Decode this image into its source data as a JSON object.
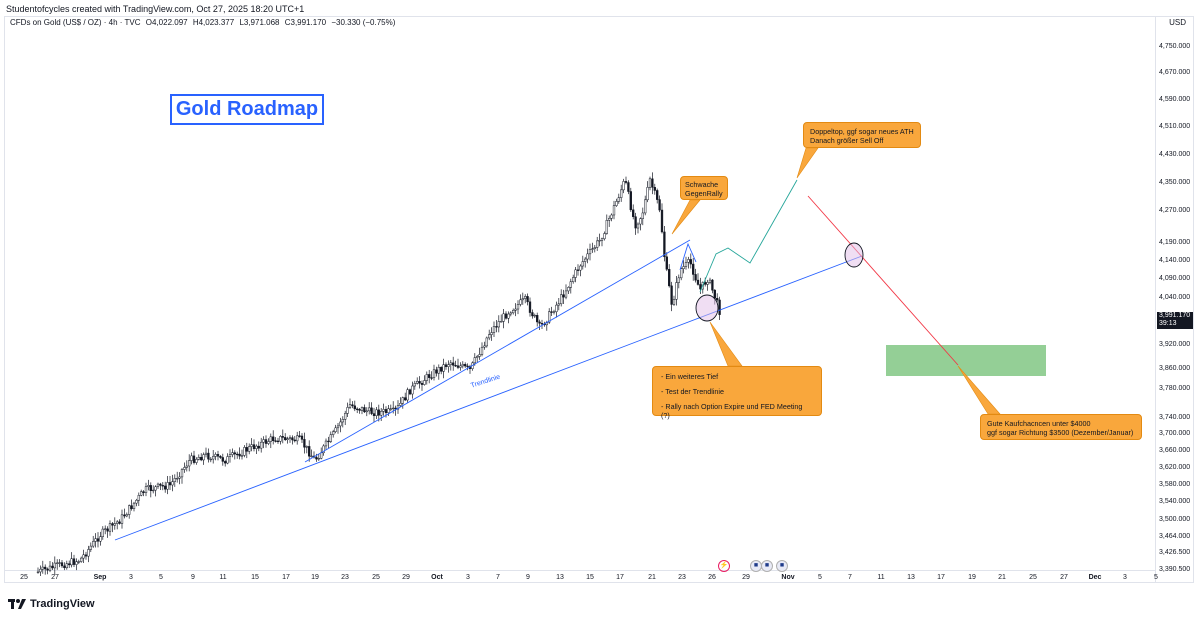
{
  "credit": "Studentofcycles created with TradingView.com, Oct 27, 2025 18:20 UTC+1",
  "symbol": {
    "name": "CFDs on Gold (US$ / OZ) · 4h · TVC",
    "open": "O4,022.097",
    "high": "H4,023.377",
    "low": "L3,971.068",
    "close": "C3,991.170",
    "change": "−30.330 (−0.75%)"
  },
  "currency": "USD",
  "price_axis": {
    "ticks": [
      "4,750.000",
      "4,670.000",
      "4,590.000",
      "4,510.000",
      "4,430.000",
      "4,350.000",
      "4,270.000",
      "4,190.000",
      "4,140.000",
      "4,090.000",
      "4,040.000",
      "3,920.000",
      "3,860.000",
      "3,780.000",
      "3,740.000",
      "3,700.000",
      "3,660.000",
      "3,620.000",
      "3,580.000",
      "3,540.000",
      "3,500.000",
      "3,464.000",
      "3,426.500",
      "3,390.500"
    ],
    "current_price": "3,991.170",
    "countdown": "39:13"
  },
  "time_axis": {
    "ticks": [
      "25",
      "27",
      "Sep",
      "3",
      "5",
      "9",
      "11",
      "15",
      "17",
      "19",
      "23",
      "25",
      "29",
      "Oct",
      "3",
      "7",
      "9",
      "13",
      "15",
      "17",
      "21",
      "23",
      "26",
      "29",
      "Nov",
      "5",
      "7",
      "11",
      "13",
      "17",
      "19",
      "21",
      "25",
      "27",
      "Dec",
      "3",
      "5"
    ]
  },
  "title": "Gold Roadmap",
  "trendline_label": "Trendlinie",
  "callouts": {
    "weak_rally": [
      "Schwache",
      "GegenRally"
    ],
    "double_top": [
      "Doppeltop, ggf sogar neues ATH",
      "Danach größer Sell Off"
    ],
    "new_low": [
      "- Ein weiteres Tief",
      "- Test der Trendlinie",
      "- Rally nach Option Expire und FED Meeting (?)"
    ],
    "buy_zone": [
      "Gute Kaufchacncen unter $4000",
      "ggf sogar Richtung $3500 (Dezember/Januar)"
    ]
  },
  "event_icons": [
    "bolt-icon",
    "us-flag-icon",
    "us-flag-icon",
    "us-flag-icon"
  ],
  "footer": "TradingView",
  "colors": {
    "candle": "#131722",
    "trendline": "#2962ff",
    "projection_up": "#26a69a",
    "projection_down": "#f23645",
    "buy_zone": "#81c784",
    "callout": "#f9a73c",
    "title": "#2962ff"
  },
  "chart_data": {
    "type": "line",
    "title": "",
    "series": [
      {
        "name": "",
        "x": [
          "Aug 25",
          "Aug 27",
          "Sep 1",
          "Sep 3",
          "Sep 5",
          "Sep 9",
          "Sep 11",
          "Sep 15",
          "Sep 17",
          "Sep 19",
          "Sep 23",
          "Sep 25",
          "Sep 29",
          "Oct 1",
          "Oct 3",
          "Oct 7",
          "Oct 9",
          "Oct 13",
          "Oct 15",
          "Oct 17",
          "Oct 21",
          "Oct 23",
          "Oct 26"
        ],
        "values": [
          3370,
          3390,
          3470,
          3530,
          3590,
          3645,
          3640,
          3680,
          3670,
          3640,
          3760,
          3740,
          3840,
          3860,
          3890,
          3960,
          3990,
          4090,
          4180,
          4370,
          4150,
          4120,
          3991
        ]
      }
    ]
  }
}
